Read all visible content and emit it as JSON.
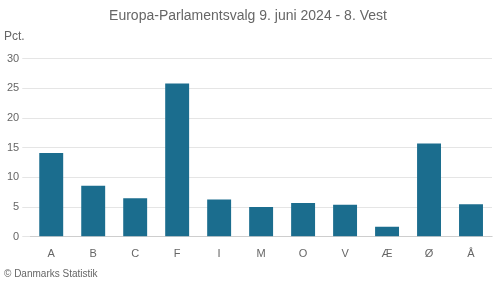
{
  "chart_data": {
    "type": "bar",
    "title": "Europa-Parlamentsvalg 9. juni 2024 - 8. Vest",
    "ylabel": "Pct.",
    "annotations": [
      "© Danmarks Statistik"
    ],
    "categories": [
      "A",
      "B",
      "C",
      "F",
      "I",
      "M",
      "O",
      "V",
      "Æ",
      "Ø",
      "Å"
    ],
    "values": [
      14.1,
      8.6,
      6.5,
      25.8,
      6.3,
      5.0,
      5.7,
      5.4,
      1.7,
      15.7,
      5.5
    ],
    "color": "#1b6d8e",
    "ylim": [
      0,
      32
    ],
    "yticks": [
      0,
      5,
      10,
      15,
      20,
      25,
      30
    ],
    "grid": true
  }
}
